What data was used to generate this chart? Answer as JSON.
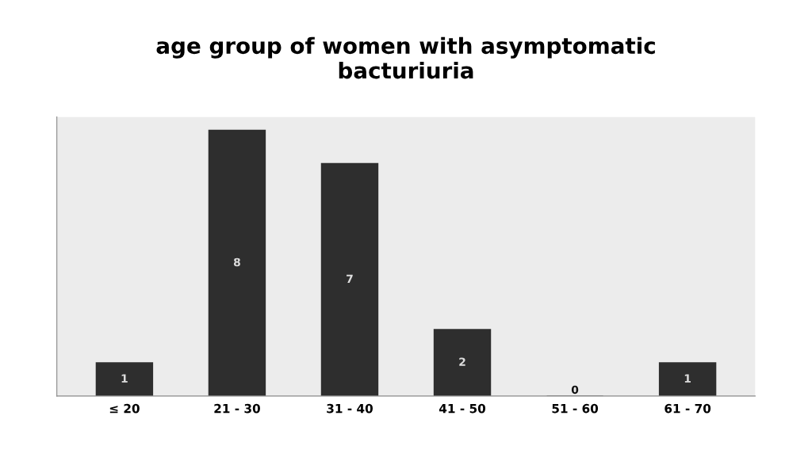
{
  "chart_data": {
    "type": "bar",
    "title": "age group of women with asymptomatic\nbacturiuria",
    "categories": [
      "≤ 20",
      "21 - 30",
      "31 - 40",
      "41 - 50",
      "51 - 60",
      "61 - 70"
    ],
    "values": [
      1,
      8,
      7,
      2,
      0,
      1
    ],
    "color": "#2e2e2e",
    "data_labels": true,
    "grid": false,
    "legend": false,
    "tick_labels": "x"
  }
}
